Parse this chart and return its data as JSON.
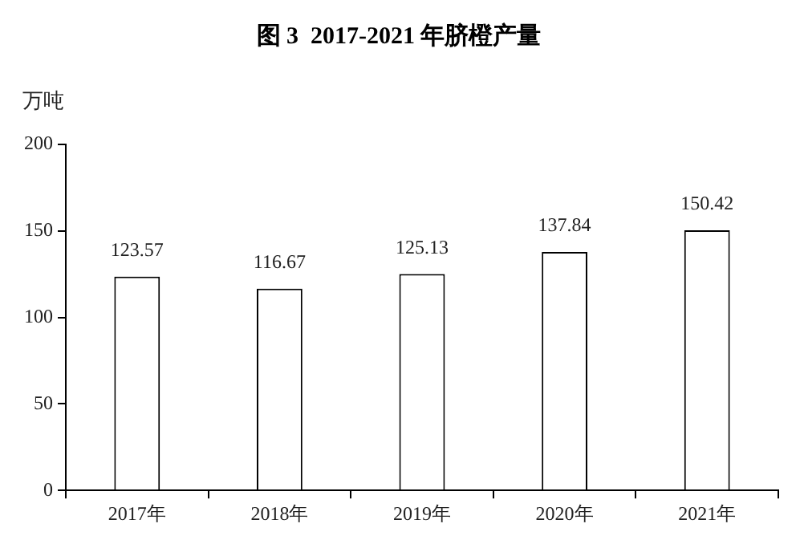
{
  "chart_data": {
    "type": "bar",
    "title": "图 3  2017-2021 年脐橙产量",
    "ylabel": "万吨",
    "categories": [
      "2017年",
      "2018年",
      "2019年",
      "2020年",
      "2021年"
    ],
    "values": [
      123.57,
      116.67,
      125.13,
      137.84,
      150.42
    ],
    "color": "#ffffff",
    "ylim": [
      0,
      200
    ],
    "yticks": [
      0,
      50,
      100,
      150,
      200
    ],
    "grid": false,
    "data_labels": true,
    "legend": false
  }
}
